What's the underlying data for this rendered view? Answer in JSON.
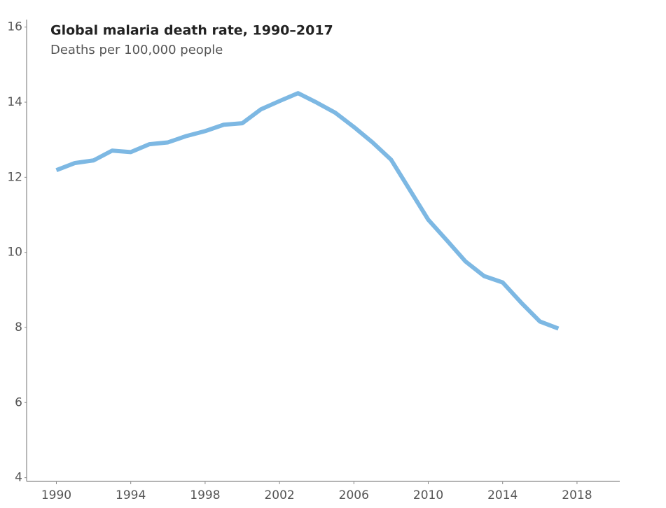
{
  "chart_data": {
    "type": "line",
    "title": "Global malaria death rate, 1990–2017",
    "subtitle": "Deaths per 100,000 people",
    "x": [
      1990,
      1991,
      1992,
      1993,
      1994,
      1995,
      1996,
      1997,
      1998,
      1999,
      2000,
      2001,
      2002,
      2003,
      2004,
      2005,
      2006,
      2007,
      2008,
      2009,
      2010,
      2011,
      2012,
      2013,
      2014,
      2015,
      2016,
      2017
    ],
    "series": [
      {
        "color": "#7db8e3",
        "values": [
          12.19,
          12.38,
          12.45,
          12.71,
          12.67,
          12.88,
          12.93,
          13.1,
          13.23,
          13.4,
          13.44,
          13.81,
          14.03,
          14.24,
          13.99,
          13.72,
          13.34,
          12.93,
          12.47,
          11.67,
          10.87,
          10.32,
          9.76,
          9.37,
          9.2,
          8.66,
          8.16,
          7.97
        ]
      }
    ],
    "xlim": [
      1988.4,
      2020.3
    ],
    "xticks": [
      1990,
      1994,
      1998,
      2002,
      2006,
      2010,
      2014,
      2018
    ],
    "ylim": [
      3.9,
      16.2
    ],
    "yticks": [
      4,
      6,
      8,
      10,
      12,
      14,
      16
    ]
  }
}
